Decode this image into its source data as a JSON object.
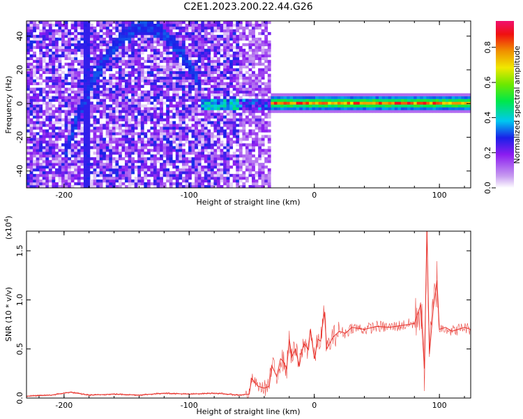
{
  "title": "C2E1.2023.200.22.44.G26",
  "chart_data": [
    {
      "type": "heatmap",
      "xlabel": "Height of straight line (km)",
      "ylabel": "Frequency (Hz)",
      "xlim": [
        -230,
        125
      ],
      "ylim": [
        -50,
        49
      ],
      "x_ticks": [
        -200,
        -100,
        0,
        100
      ],
      "y_ticks": [
        -40,
        -20,
        0,
        20,
        40
      ],
      "x_tick_labels": [
        "-200",
        "-100",
        "0",
        "100"
      ],
      "y_tick_labels": [
        "-40",
        "-20",
        "0",
        "20",
        "40"
      ],
      "colorbar": {
        "label": "Normalized spectral amplitude",
        "range": [
          0,
          0.95
        ],
        "ticks": [
          0.0,
          0.2,
          0.4,
          0.6,
          0.8
        ],
        "tick_labels": [
          "0.0",
          "0.2",
          "0.4",
          "0.6",
          "0.8"
        ]
      },
      "features": [
        {
          "x_range": [
            -230,
            -35
          ],
          "level": 0.25
        },
        {
          "x_range": [
            -35,
            125
          ],
          "freq_center": 0,
          "level": 0.85
        },
        {
          "x_range": [
            -190,
            -100
          ],
          "freq_range": [
            -10,
            45
          ],
          "level": 0.2
        },
        {
          "x_range": [
            -185,
            -180
          ],
          "freq_range": [
            -48,
            0
          ],
          "level": 0.2
        }
      ]
    },
    {
      "type": "line",
      "xlabel": "Height of straight line (km)",
      "ylabel": "SNR (10 * v/v)",
      "y_multiplier_label": "(x10",
      "y_multiplier_exp": "4",
      "y_multiplier_close": ")",
      "xlim": [
        -230,
        125
      ],
      "ylim": [
        0,
        1.7
      ],
      "x_ticks": [
        -200,
        -100,
        0,
        100
      ],
      "y_ticks": [
        0.0,
        0.5,
        1.0,
        1.5
      ],
      "x_tick_labels": [
        "-200",
        "-100",
        "0",
        "100"
      ],
      "y_tick_labels": [
        "0.0",
        "0.5",
        "1.0",
        "1.5"
      ],
      "series_color": "#e8312a",
      "x": [
        -230,
        -210,
        -195,
        -180,
        -160,
        -140,
        -120,
        -100,
        -80,
        -60,
        -52,
        -50,
        -45,
        -40,
        -36,
        -34,
        -30,
        -27,
        -25,
        -22,
        -20,
        -18,
        -15,
        -12,
        -10,
        -8,
        -5,
        -3,
        0,
        3,
        5,
        8,
        10,
        15,
        20,
        25,
        30,
        40,
        50,
        60,
        70,
        80,
        85,
        88,
        90,
        92,
        95,
        98,
        100,
        105,
        110,
        115,
        120,
        125
      ],
      "y": [
        0.02,
        0.03,
        0.06,
        0.03,
        0.04,
        0.03,
        0.05,
        0.04,
        0.05,
        0.03,
        0.04,
        0.2,
        0.12,
        0.1,
        0.12,
        0.33,
        0.22,
        0.4,
        0.38,
        0.3,
        0.6,
        0.42,
        0.5,
        0.32,
        0.48,
        0.55,
        0.5,
        0.7,
        0.4,
        0.6,
        0.58,
        0.88,
        0.5,
        0.62,
        0.68,
        0.66,
        0.72,
        0.7,
        0.73,
        0.72,
        0.74,
        0.76,
        0.95,
        0.3,
        1.7,
        0.45,
        0.9,
        1.2,
        0.7,
        0.72,
        0.68,
        0.7,
        0.72,
        0.7
      ]
    }
  ]
}
